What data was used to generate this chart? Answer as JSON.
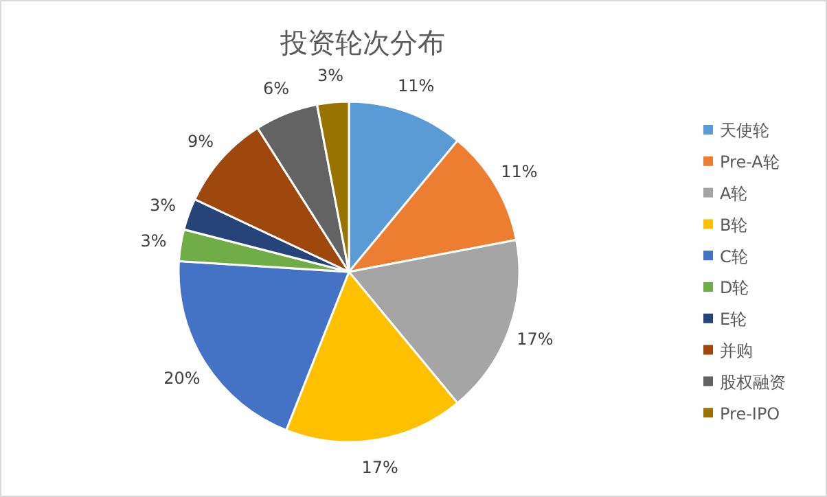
{
  "chart_data": {
    "type": "pie",
    "title": "投资轮次分布",
    "categories": [
      "天使轮",
      "Pre-A轮",
      "A轮",
      "B轮",
      "C轮",
      "D轮",
      "E轮",
      "并购",
      "股权融资",
      "Pre-IPO"
    ],
    "values": [
      11,
      11,
      17,
      17,
      20,
      3,
      3,
      9,
      6,
      3
    ],
    "colors": [
      "#5b9bd5",
      "#ed7d31",
      "#a5a5a5",
      "#ffc000",
      "#4472c4",
      "#70ad47",
      "#264478",
      "#9e480e",
      "#636363",
      "#997300"
    ],
    "value_labels": [
      "11%",
      "11%",
      "17%",
      "17%",
      "20%",
      "3%",
      "3%",
      "9%",
      "6%",
      "3%"
    ],
    "legend": "right"
  }
}
